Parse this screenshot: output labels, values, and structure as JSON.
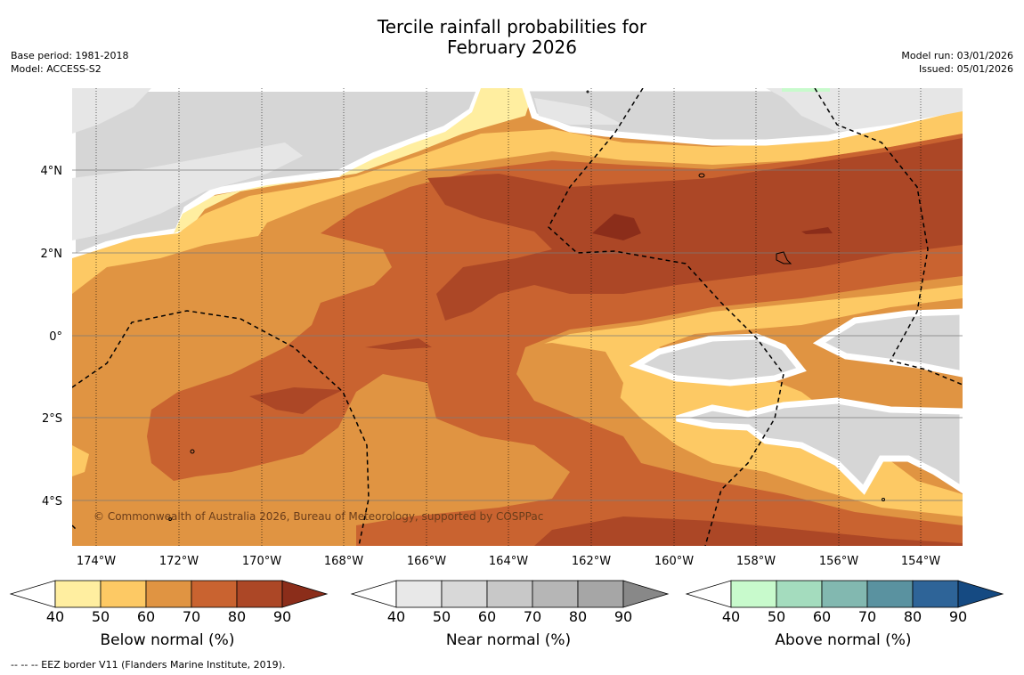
{
  "title": {
    "line1": "Tercile rainfall probabilities for",
    "line2": "February 2026"
  },
  "base_period": "Base period: 1981-2018",
  "model": "Model: ACCESS-S2",
  "model_run": "Model run: 03/01/2026",
  "issued": "Issued: 05/01/2026",
  "copyright": "© Commonwealth of Australia 2026, Bureau of Meteorology, supported by COSPPac",
  "footnote": "--  --  -- EEZ border V11 (Flanders Marine Institute, 2019).",
  "lat_labels": [
    "4°N",
    "2°N",
    "0°",
    "2°S",
    "4°S"
  ],
  "lon_labels": [
    "174°W",
    "172°W",
    "170°W",
    "168°W",
    "166°W",
    "164°W",
    "162°W",
    "160°W",
    "158°W",
    "156°W",
    "154°W"
  ],
  "colorbars": [
    {
      "label": "Below normal (%)",
      "ticks": [
        "40",
        "50",
        "60",
        "70",
        "80",
        "90"
      ],
      "colors": [
        "#ffffff",
        "#ffeea0",
        "#fdc964",
        "#e09442",
        "#c96330",
        "#ac4726",
        "#8b2d1a"
      ]
    },
    {
      "label": "Near normal (%)",
      "ticks": [
        "40",
        "50",
        "60",
        "70",
        "80",
        "90"
      ],
      "colors": [
        "#ffffff",
        "#e8e8e8",
        "#d8d8d8",
        "#c8c8c8",
        "#b6b6b6",
        "#a6a6a6",
        "#888888"
      ]
    },
    {
      "label": "Above normal (%)",
      "ticks": [
        "40",
        "50",
        "60",
        "70",
        "80",
        "90"
      ],
      "colors": [
        "#ffffff",
        "#c8facc",
        "#a4dcbe",
        "#82b8b0",
        "#5a92a0",
        "#2e6498",
        "#154a82"
      ]
    }
  ]
}
